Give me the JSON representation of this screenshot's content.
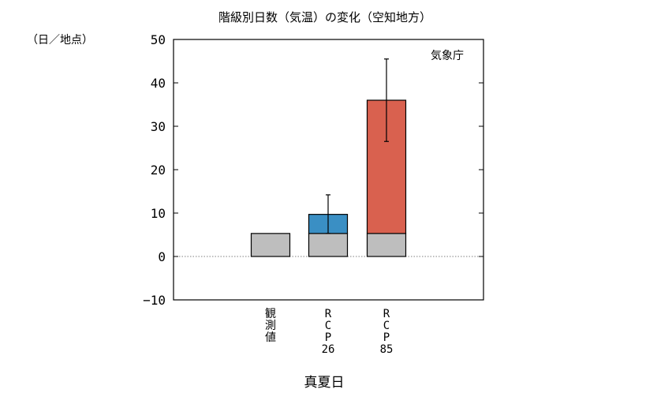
{
  "chart_data": {
    "type": "bar",
    "title": "階級別日数（気温）の変化（空知地方）",
    "ylabel": "（日／地点）",
    "xlabel": "真夏日",
    "source": "気象庁",
    "ylim": [
      -10,
      50
    ],
    "yticks": [
      -10,
      0,
      10,
      20,
      30,
      40,
      50
    ],
    "grid": false,
    "zero_line": "dotted",
    "categories": [
      "観\n測\n値",
      "R\nC\nP\n26",
      "R\nC\nP\n85"
    ],
    "series": [
      {
        "values": [
          5.3,
          5.3,
          5.3
        ],
        "color": "#bebebe"
      },
      {
        "values": [
          0,
          4.4,
          30.7
        ],
        "color_by_category": [
          "#bebebe",
          "#3a8fc4",
          "#d9614f"
        ]
      }
    ],
    "error_bars": [
      null,
      {
        "center": 9.7,
        "low": 5.3,
        "high": 14.2
      },
      {
        "center": 36.0,
        "low": 26.5,
        "high": 45.5
      }
    ]
  }
}
